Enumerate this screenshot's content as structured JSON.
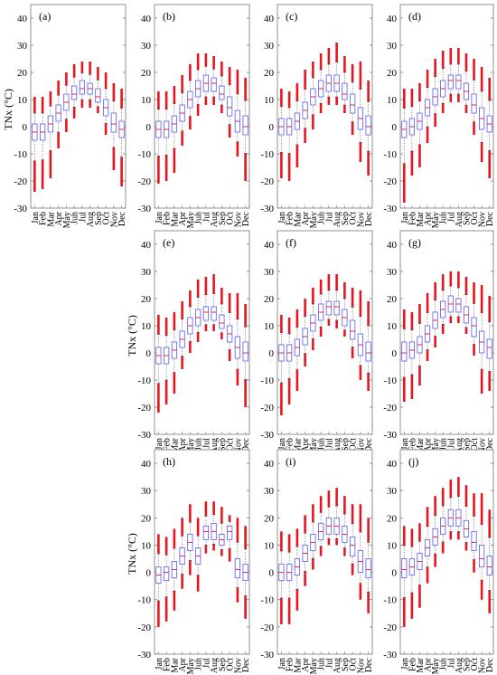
{
  "figure": {
    "ylabel": "TNx (°C)",
    "months": [
      "Jan",
      "Feb",
      "Mar",
      "Apr",
      "May",
      "Jun",
      "Jul",
      "Aug",
      "Sep",
      "Oct",
      "Nov",
      "Dec"
    ],
    "yticks": [
      -30,
      -20,
      -10,
      0,
      10,
      20,
      30,
      40
    ],
    "ylim": [
      -30,
      45
    ]
  },
  "chart_data": [
    {
      "type": "boxplot",
      "label": "(a)",
      "categories": [
        "Jan",
        "Feb",
        "Mar",
        "Apr",
        "May",
        "Jun",
        "Jul",
        "Aug",
        "Sep",
        "Oct",
        "Nov",
        "Dec"
      ],
      "median": [
        -2,
        -2,
        1,
        5,
        9,
        12,
        14,
        14,
        11,
        7,
        1,
        -1
      ],
      "box": [
        [
          -5,
          1
        ],
        [
          -5,
          1
        ],
        [
          -2,
          4
        ],
        [
          2,
          8
        ],
        [
          6,
          12
        ],
        [
          10,
          15
        ],
        [
          12,
          17
        ],
        [
          12,
          16
        ],
        [
          9,
          14
        ],
        [
          4,
          10
        ],
        [
          -2,
          5
        ],
        [
          -4,
          2
        ]
      ],
      "whisker": [
        [
          -24,
          11
        ],
        [
          -23,
          11
        ],
        [
          -19,
          13
        ],
        [
          -8,
          17
        ],
        [
          -2,
          20
        ],
        [
          3,
          23
        ],
        [
          7,
          24
        ],
        [
          7,
          24
        ],
        [
          5,
          22
        ],
        [
          -3,
          20
        ],
        [
          -16,
          16
        ],
        [
          -22,
          14
        ]
      ]
    },
    {
      "type": "boxplot",
      "label": "(b)",
      "categories": [
        "Jan",
        "Feb",
        "Mar",
        "Apr",
        "May",
        "Jun",
        "Jul",
        "Aug",
        "Sep",
        "Oct",
        "Nov",
        "Dec"
      ],
      "median": [
        -1,
        -1,
        1,
        5,
        10,
        14,
        16,
        16,
        12,
        7,
        2,
        0
      ],
      "box": [
        [
          -4,
          2
        ],
        [
          -4,
          2
        ],
        [
          -2,
          4
        ],
        [
          2,
          8
        ],
        [
          7,
          13
        ],
        [
          11,
          17
        ],
        [
          13,
          19
        ],
        [
          13,
          18
        ],
        [
          10,
          15
        ],
        [
          4,
          11
        ],
        [
          -2,
          6
        ],
        [
          -3,
          4
        ]
      ],
      "whisker": [
        [
          -21,
          13
        ],
        [
          -20,
          13
        ],
        [
          -17,
          15
        ],
        [
          -7,
          19
        ],
        [
          -1,
          23
        ],
        [
          4,
          27
        ],
        [
          8,
          27
        ],
        [
          8,
          26
        ],
        [
          5,
          24
        ],
        [
          -4,
          22
        ],
        [
          -11,
          21
        ],
        [
          -20,
          18
        ]
      ]
    },
    {
      "type": "boxplot",
      "label": "(c)",
      "categories": [
        "Jan",
        "Feb",
        "Mar",
        "Apr",
        "May",
        "Jun",
        "Jul",
        "Aug",
        "Sep",
        "Oct",
        "Nov",
        "Dec"
      ],
      "median": [
        0,
        0,
        2,
        6,
        11,
        14,
        16,
        16,
        12,
        8,
        3,
        0
      ],
      "box": [
        [
          -3,
          3
        ],
        [
          -3,
          3
        ],
        [
          -1,
          5
        ],
        [
          3,
          9
        ],
        [
          8,
          14
        ],
        [
          11,
          17
        ],
        [
          13,
          19
        ],
        [
          13,
          19
        ],
        [
          10,
          16
        ],
        [
          5,
          12
        ],
        [
          -1,
          7
        ],
        [
          -3,
          4
        ]
      ],
      "whisker": [
        [
          -19,
          14
        ],
        [
          -20,
          13
        ],
        [
          -15,
          16
        ],
        [
          -6,
          21
        ],
        [
          -1,
          24
        ],
        [
          5,
          27
        ],
        [
          8,
          29
        ],
        [
          8,
          31
        ],
        [
          5,
          26
        ],
        [
          -3,
          23
        ],
        [
          -13,
          24
        ],
        [
          -18,
          17
        ]
      ]
    },
    {
      "type": "boxplot",
      "label": "(d)",
      "categories": [
        "Jan",
        "Feb",
        "Mar",
        "Apr",
        "May",
        "Jun",
        "Jul",
        "Aug",
        "Sep",
        "Oct",
        "Nov",
        "Dec"
      ],
      "median": [
        -1,
        0,
        2,
        7,
        11,
        14,
        17,
        17,
        13,
        8,
        3,
        1
      ],
      "box": [
        [
          -4,
          2
        ],
        [
          -3,
          3
        ],
        [
          -1,
          5
        ],
        [
          4,
          10
        ],
        [
          8,
          14
        ],
        [
          11,
          17
        ],
        [
          14,
          19
        ],
        [
          14,
          19
        ],
        [
          10,
          16
        ],
        [
          5,
          12
        ],
        [
          -1,
          7
        ],
        [
          -2,
          4
        ]
      ],
      "whisker": [
        [
          -28,
          14
        ],
        [
          -18,
          14
        ],
        [
          -15,
          16
        ],
        [
          -6,
          21
        ],
        [
          0,
          25
        ],
        [
          5,
          28
        ],
        [
          9,
          29
        ],
        [
          9,
          29
        ],
        [
          5,
          27
        ],
        [
          -3,
          25
        ],
        [
          -13,
          22
        ],
        [
          -19,
          18
        ]
      ]
    },
    {
      "type": "boxplot",
      "label": "(e)",
      "categories": [
        "Jan",
        "Feb",
        "Mar",
        "Apr",
        "May",
        "Jun",
        "Jul",
        "Aug",
        "Sep",
        "Oct",
        "Nov",
        "Dec"
      ],
      "median": [
        -1,
        -1,
        1,
        5,
        10,
        13,
        15,
        15,
        11,
        7,
        2,
        0
      ],
      "box": [
        [
          -4,
          2
        ],
        [
          -4,
          2
        ],
        [
          -2,
          4
        ],
        [
          2,
          8
        ],
        [
          7,
          13
        ],
        [
          10,
          16
        ],
        [
          12,
          17
        ],
        [
          12,
          17
        ],
        [
          9,
          14
        ],
        [
          4,
          10
        ],
        [
          -2,
          6
        ],
        [
          -3,
          4
        ]
      ],
      "whisker": [
        [
          -22,
          14
        ],
        [
          -19,
          13
        ],
        [
          -15,
          15
        ],
        [
          -6,
          19
        ],
        [
          0,
          23
        ],
        [
          4,
          27
        ],
        [
          8,
          28
        ],
        [
          8,
          29
        ],
        [
          5,
          24
        ],
        [
          -3,
          22
        ],
        [
          -12,
          22
        ],
        [
          -20,
          18
        ]
      ]
    },
    {
      "type": "boxplot",
      "label": "(f)",
      "categories": [
        "Jan",
        "Feb",
        "Mar",
        "Apr",
        "May",
        "Jun",
        "Jul",
        "Aug",
        "Sep",
        "Oct",
        "Nov",
        "Dec"
      ],
      "median": [
        0,
        0,
        2,
        6,
        11,
        15,
        17,
        17,
        13,
        8,
        3,
        0
      ],
      "box": [
        [
          -3,
          3
        ],
        [
          -3,
          3
        ],
        [
          -1,
          5
        ],
        [
          3,
          9
        ],
        [
          8,
          14
        ],
        [
          12,
          18
        ],
        [
          14,
          19
        ],
        [
          14,
          19
        ],
        [
          10,
          16
        ],
        [
          5,
          12
        ],
        [
          -1,
          7
        ],
        [
          -3,
          4
        ]
      ],
      "whisker": [
        [
          -23,
          14
        ],
        [
          -19,
          13
        ],
        [
          -14,
          16
        ],
        [
          -5,
          20
        ],
        [
          1,
          24
        ],
        [
          6,
          27
        ],
        [
          10,
          29
        ],
        [
          9,
          29
        ],
        [
          6,
          26
        ],
        [
          -2,
          24
        ],
        [
          -10,
          23
        ],
        [
          -14,
          19
        ]
      ]
    },
    {
      "type": "boxplot",
      "label": "(g)",
      "categories": [
        "Jan",
        "Feb",
        "Mar",
        "Apr",
        "May",
        "Jun",
        "Jul",
        "Aug",
        "Sep",
        "Oct",
        "Nov",
        "Dec"
      ],
      "median": [
        0,
        1,
        3,
        7,
        12,
        16,
        18,
        18,
        14,
        10,
        4,
        2
      ],
      "box": [
        [
          -3,
          4
        ],
        [
          -2,
          4
        ],
        [
          0,
          6
        ],
        [
          4,
          10
        ],
        [
          9,
          15
        ],
        [
          13,
          19
        ],
        [
          15,
          21
        ],
        [
          15,
          20
        ],
        [
          11,
          17
        ],
        [
          6,
          13
        ],
        [
          0,
          8
        ],
        [
          -2,
          5
        ]
      ],
      "whisker": [
        [
          -18,
          16
        ],
        [
          -17,
          15
        ],
        [
          -12,
          18
        ],
        [
          -3,
          22
        ],
        [
          2,
          26
        ],
        [
          7,
          29
        ],
        [
          11,
          30
        ],
        [
          11,
          30
        ],
        [
          7,
          28
        ],
        [
          -1,
          26
        ],
        [
          -15,
          25
        ],
        [
          -14,
          21
        ]
      ]
    },
    {
      "type": "boxplot",
      "label": "(h)",
      "categories": [
        "Jan",
        "Feb",
        "Mar",
        "Apr",
        "May",
        "Jun",
        "Jul",
        "Aug",
        "Sep",
        "Oct",
        "Nov",
        "Dec"
      ],
      "median": [
        -1,
        0,
        1,
        6,
        11,
        6,
        15,
        15,
        12,
        15,
        1,
        0
      ],
      "box": [
        [
          -4,
          2
        ],
        [
          -3,
          2
        ],
        [
          -2,
          4
        ],
        [
          3,
          9
        ],
        [
          8,
          14
        ],
        [
          3,
          9
        ],
        [
          12,
          17
        ],
        [
          12,
          18
        ],
        [
          10,
          14
        ],
        [
          12,
          17
        ],
        [
          -2,
          5
        ],
        [
          -3,
          3
        ]
      ],
      "whisker": [
        [
          -20,
          14
        ],
        [
          -18,
          13
        ],
        [
          -14,
          16
        ],
        [
          -6,
          20
        ],
        [
          -1,
          25
        ],
        [
          -7,
          20
        ],
        [
          7,
          26
        ],
        [
          8,
          26
        ],
        [
          6,
          24
        ],
        [
          4,
          21
        ],
        [
          -11,
          20
        ],
        [
          -17,
          17
        ]
      ]
    },
    {
      "type": "boxplot",
      "label": "(i)",
      "categories": [
        "Jan",
        "Feb",
        "Mar",
        "Apr",
        "May",
        "Jun",
        "Jul",
        "Aug",
        "Sep",
        "Oct",
        "Nov",
        "Dec"
      ],
      "median": [
        0,
        0,
        2,
        7,
        11,
        15,
        17,
        17,
        14,
        10,
        4,
        1
      ],
      "box": [
        [
          -3,
          3
        ],
        [
          -3,
          3
        ],
        [
          -1,
          5
        ],
        [
          4,
          10
        ],
        [
          8,
          14
        ],
        [
          12,
          18
        ],
        [
          14,
          20
        ],
        [
          14,
          20
        ],
        [
          11,
          17
        ],
        [
          6,
          13
        ],
        [
          0,
          8
        ],
        [
          -2,
          5
        ]
      ],
      "whisker": [
        [
          -19,
          15
        ],
        [
          -19,
          14
        ],
        [
          -14,
          16
        ],
        [
          -5,
          21
        ],
        [
          1,
          25
        ],
        [
          6,
          28
        ],
        [
          10,
          30
        ],
        [
          10,
          31
        ],
        [
          6,
          28
        ],
        [
          -1,
          25
        ],
        [
          -10,
          25
        ],
        [
          -15,
          20
        ]
      ]
    },
    {
      "type": "boxplot",
      "label": "(j)",
      "categories": [
        "Jan",
        "Feb",
        "Mar",
        "Apr",
        "May",
        "Jun",
        "Jul",
        "Aug",
        "Sep",
        "Oct",
        "Nov",
        "Dec"
      ],
      "median": [
        1,
        2,
        4,
        9,
        13,
        17,
        20,
        20,
        16,
        11,
        5,
        2
      ],
      "box": [
        [
          -2,
          5
        ],
        [
          -1,
          5
        ],
        [
          1,
          7
        ],
        [
          6,
          12
        ],
        [
          10,
          16
        ],
        [
          14,
          20
        ],
        [
          17,
          23
        ],
        [
          17,
          23
        ],
        [
          13,
          19
        ],
        [
          8,
          15
        ],
        [
          2,
          10
        ],
        [
          -1,
          6
        ]
      ],
      "whisker": [
        [
          -20,
          17
        ],
        [
          -17,
          16
        ],
        [
          -13,
          18
        ],
        [
          -4,
          24
        ],
        [
          2,
          28
        ],
        [
          7,
          31
        ],
        [
          12,
          34
        ],
        [
          12,
          35
        ],
        [
          8,
          32
        ],
        [
          0,
          29
        ],
        [
          -10,
          29
        ],
        [
          -15,
          23
        ]
      ]
    }
  ]
}
